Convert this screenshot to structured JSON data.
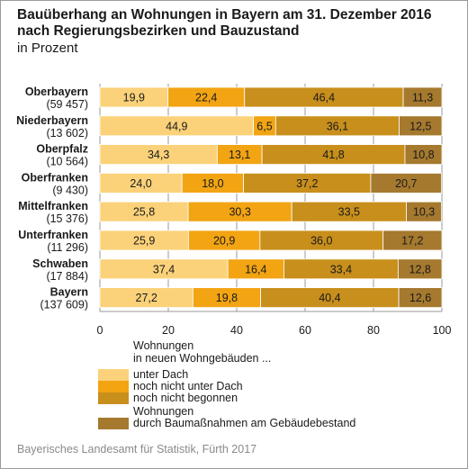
{
  "title": "Bauüberhang an Wohnungen in Bayern am 31. Dezember 2016 nach Regierungsbezirken und Bauzustand",
  "subtitle": "in Prozent",
  "source": "Bayerisches Landesamt für Statistik, Fürth 2017",
  "colors": {
    "unter_dach": "#fbd27a",
    "noch_nicht_unter_dach": "#f2a413",
    "noch_nicht_begonnen": "#c88f1c",
    "baumassnahmen": "#a5792e",
    "grid": "#9a9a9a"
  },
  "legend": {
    "heading_line1": "Wohnungen",
    "heading_line2": "in neuen Wohngebäuden ...",
    "items": [
      {
        "label": "unter Dach",
        "color": "#fbd27a"
      },
      {
        "label": "noch nicht unter Dach",
        "color": "#f2a413"
      },
      {
        "label": "noch nicht begonnen",
        "color": "#c88f1c"
      }
    ],
    "second_heading": "Wohnungen",
    "second_item": {
      "label": "durch Baumaßnahmen am Gebäudebestand",
      "color": "#a5792e"
    }
  },
  "chart_data": {
    "type": "bar",
    "orientation": "horizontal",
    "stacked": true,
    "categories": [
      "Oberbayern",
      "Niederbayern",
      "Oberpfalz",
      "Oberfranken",
      "Mittelfranken",
      "Unterfranken",
      "Schwaben",
      "Bayern"
    ],
    "category_counts": [
      "(59 457)",
      "(13 602)",
      "(10 564)",
      "(9 430)",
      "(15 376)",
      "(11 296)",
      "(17 884)",
      "(137 609)"
    ],
    "series": [
      {
        "name": "unter Dach",
        "color": "#fbd27a",
        "values": [
          19.9,
          44.9,
          34.3,
          24.0,
          25.8,
          25.9,
          37.4,
          27.2
        ]
      },
      {
        "name": "noch nicht unter Dach",
        "color": "#f2a413",
        "values": [
          22.4,
          6.5,
          13.1,
          18.0,
          30.3,
          20.9,
          16.4,
          19.8
        ]
      },
      {
        "name": "noch nicht begonnen",
        "color": "#c88f1c",
        "values": [
          46.4,
          36.1,
          41.8,
          37.2,
          33.5,
          36.0,
          33.4,
          40.4
        ]
      },
      {
        "name": "durch Baumaßnahmen am Gebäudebestand",
        "color": "#a5792e",
        "values": [
          11.3,
          12.5,
          10.8,
          20.7,
          10.3,
          17.2,
          12.8,
          12.6
        ]
      }
    ],
    "value_labels": [
      [
        "19,9",
        "22,4",
        "46,4",
        "11,3"
      ],
      [
        "44,9",
        "6,5",
        "36,1",
        "12,5"
      ],
      [
        "34,3",
        "13,1",
        "41,8",
        "10,8"
      ],
      [
        "24,0",
        "18,0",
        "37,2",
        "20,7"
      ],
      [
        "25,8",
        "30,3",
        "33,5",
        "10,3"
      ],
      [
        "25,9",
        "20,9",
        "36,0",
        "17,2"
      ],
      [
        "37,4",
        "16,4",
        "33,4",
        "12,8"
      ],
      [
        "27,2",
        "19,8",
        "40,4",
        "12,6"
      ]
    ],
    "xlim": [
      0,
      100
    ],
    "xticks": [
      0,
      20,
      40,
      60,
      80,
      100
    ],
    "grid": true
  }
}
